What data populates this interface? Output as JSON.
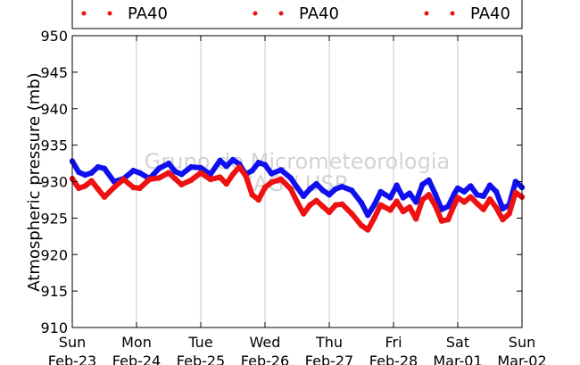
{
  "chart_data": {
    "type": "scatter",
    "ylabel": "Atmospheric pressure (mb)",
    "xlabel": "",
    "ylim": [
      910,
      950
    ],
    "y_ticks": [
      910,
      915,
      920,
      925,
      930,
      935,
      940,
      945,
      950
    ],
    "x_ticks": [
      {
        "day": "Sun",
        "date": "Feb-23",
        "x": 0
      },
      {
        "day": "Mon",
        "date": "Feb-24",
        "x": 1
      },
      {
        "day": "Tue",
        "date": "Feb-25",
        "x": 2
      },
      {
        "day": "Wed",
        "date": "Feb-26",
        "x": 3
      },
      {
        "day": "Thu",
        "date": "Feb-27",
        "x": 4
      },
      {
        "day": "Fri",
        "date": "Feb-28",
        "x": 5
      },
      {
        "day": "Sat",
        "date": "Mar-01",
        "x": 6
      },
      {
        "day": "Sun",
        "date": "Mar-02",
        "x": 7
      }
    ],
    "x_unit": "days",
    "grid": "vertical",
    "legend": {
      "placement": "top",
      "entries": [
        {
          "label": "PA40",
          "color": "#ee1111"
        },
        {
          "label": "PA40",
          "color": "#ee1111"
        },
        {
          "label": "PA40",
          "color": "#ee1111"
        }
      ]
    },
    "watermark": [
      "Grupo de Micrometeorologia",
      "IAG / USP"
    ],
    "series": [
      {
        "color": "#1010ee",
        "x": [
          0.0,
          0.1,
          0.2,
          0.3,
          0.4,
          0.5,
          0.65,
          0.8,
          0.95,
          1.05,
          1.2,
          1.35,
          1.5,
          1.6,
          1.7,
          1.85,
          2.0,
          2.15,
          2.3,
          2.4,
          2.5,
          2.6,
          2.7,
          2.8,
          2.9,
          3.0,
          3.1,
          3.25,
          3.4,
          3.5,
          3.6,
          3.7,
          3.8,
          3.9,
          4.0,
          4.1,
          4.2,
          4.35,
          4.5,
          4.6,
          4.7,
          4.8,
          4.95,
          5.05,
          5.15,
          5.25,
          5.35,
          5.45,
          5.55,
          5.65,
          5.75,
          5.85,
          5.95,
          6.0,
          6.1,
          6.2,
          6.3,
          6.4,
          6.5,
          6.6,
          6.7,
          6.8,
          6.9,
          7.0
        ],
        "y": [
          932.8,
          931.3,
          930.9,
          931.2,
          932.0,
          931.8,
          930.0,
          930.4,
          931.5,
          931.2,
          930.4,
          931.8,
          932.5,
          931.4,
          931.0,
          932.0,
          931.9,
          931.0,
          932.9,
          932.1,
          933.0,
          932.4,
          931.0,
          931.5,
          932.6,
          932.3,
          931.1,
          931.6,
          930.5,
          929.2,
          928.0,
          929.0,
          929.7,
          928.8,
          928.2,
          929.0,
          929.3,
          928.8,
          927.1,
          925.4,
          926.8,
          928.6,
          927.8,
          929.5,
          927.8,
          928.4,
          927.2,
          929.6,
          930.2,
          928.3,
          926.2,
          926.6,
          928.4,
          929.1,
          928.6,
          929.4,
          928.2,
          928.0,
          929.5,
          928.6,
          926.3,
          926.8,
          930.0,
          929.2
        ]
      },
      {
        "color": "#ee1111",
        "x": [
          0.0,
          0.1,
          0.2,
          0.3,
          0.4,
          0.5,
          0.65,
          0.8,
          0.95,
          1.05,
          1.2,
          1.35,
          1.5,
          1.6,
          1.7,
          1.85,
          2.0,
          2.15,
          2.3,
          2.4,
          2.5,
          2.6,
          2.7,
          2.8,
          2.9,
          3.0,
          3.1,
          3.25,
          3.4,
          3.5,
          3.6,
          3.7,
          3.8,
          3.9,
          4.0,
          4.1,
          4.2,
          4.35,
          4.5,
          4.6,
          4.7,
          4.8,
          4.95,
          5.05,
          5.15,
          5.25,
          5.35,
          5.45,
          5.55,
          5.65,
          5.75,
          5.85,
          5.95,
          6.0,
          6.1,
          6.2,
          6.3,
          6.4,
          6.5,
          6.6,
          6.7,
          6.8,
          6.9,
          7.0
        ],
        "y": [
          930.4,
          929.1,
          929.4,
          930.1,
          929.0,
          927.9,
          929.2,
          930.3,
          929.2,
          929.1,
          930.3,
          930.5,
          931.2,
          930.4,
          929.6,
          930.2,
          931.2,
          930.3,
          930.6,
          929.7,
          931.0,
          932.0,
          930.8,
          928.2,
          927.5,
          929.2,
          929.9,
          930.3,
          929.0,
          927.2,
          925.6,
          926.8,
          927.4,
          926.6,
          925.8,
          926.8,
          926.9,
          925.6,
          924.0,
          923.4,
          925.0,
          926.8,
          926.1,
          927.3,
          925.9,
          926.5,
          924.9,
          927.5,
          928.2,
          926.7,
          924.6,
          924.8,
          926.9,
          927.8,
          927.2,
          927.9,
          927.0,
          926.2,
          927.6,
          926.4,
          924.8,
          925.6,
          928.5,
          927.9
        ]
      }
    ]
  }
}
